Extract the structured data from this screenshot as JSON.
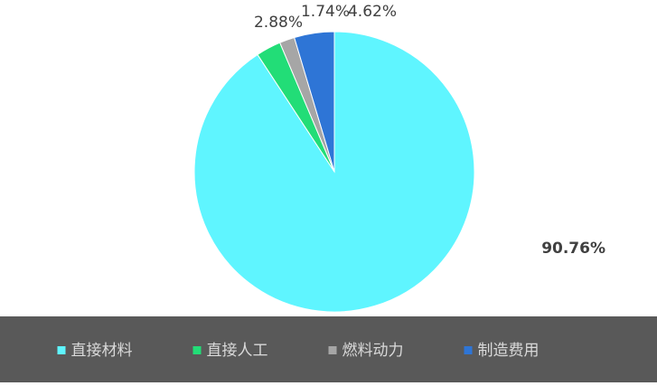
{
  "chart_data": {
    "type": "pie",
    "categories": [
      "直接材料",
      "直接人工",
      "燃料动力",
      "制造费用"
    ],
    "values": [
      90.76,
      2.88,
      1.74,
      4.62
    ],
    "value_labels": [
      "90.76%",
      "2.88%",
      "1.74%",
      "4.62%"
    ],
    "colors": [
      "#5ff5ff",
      "#22dd77",
      "#a6a6a6",
      "#2e75d6"
    ],
    "legend": "bottom"
  }
}
